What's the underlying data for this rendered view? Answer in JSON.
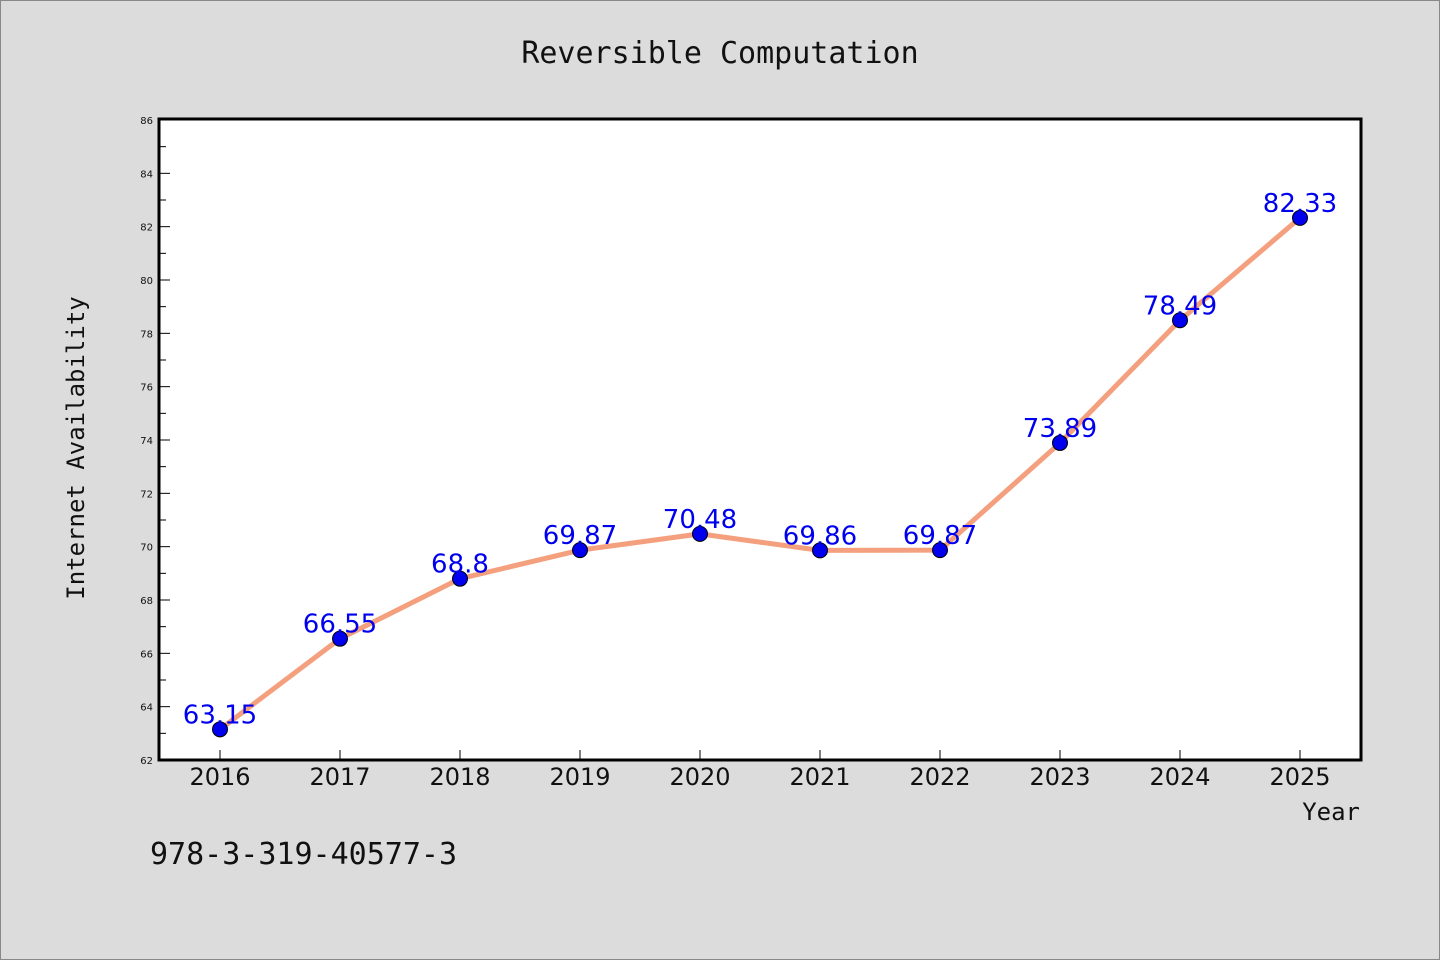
{
  "chart_data": {
    "type": "line",
    "title": "Reversible Computation",
    "xlabel": "Year",
    "ylabel": "Internet Availability",
    "categories": [
      "2016",
      "2017",
      "2018",
      "2019",
      "2020",
      "2021",
      "2022",
      "2023",
      "2024",
      "2025"
    ],
    "series": [
      {
        "values": [
          63.15,
          66.55,
          68.8,
          69.87,
          70.48,
          69.86,
          69.87,
          73.89,
          78.49,
          82.33
        ]
      }
    ],
    "data_labels": [
      "63.15",
      "66.55",
      "68.8",
      "69.87",
      "70.48",
      "69.86",
      "69.87",
      "73.89",
      "78.49",
      "82.33"
    ],
    "ylim": [
      62,
      86
    ],
    "yticks": [
      62,
      64,
      66,
      68,
      70,
      72,
      74,
      76,
      78,
      80,
      82,
      84,
      86
    ],
    "grid": false,
    "legend": "none",
    "colors": {
      "line": "#f4a07e",
      "marker": "#0000ee",
      "label": "#0000ee",
      "background": "#dcdcdc",
      "plot_area": "#ffffff"
    }
  },
  "footnote": "978-3-319-40577-3"
}
